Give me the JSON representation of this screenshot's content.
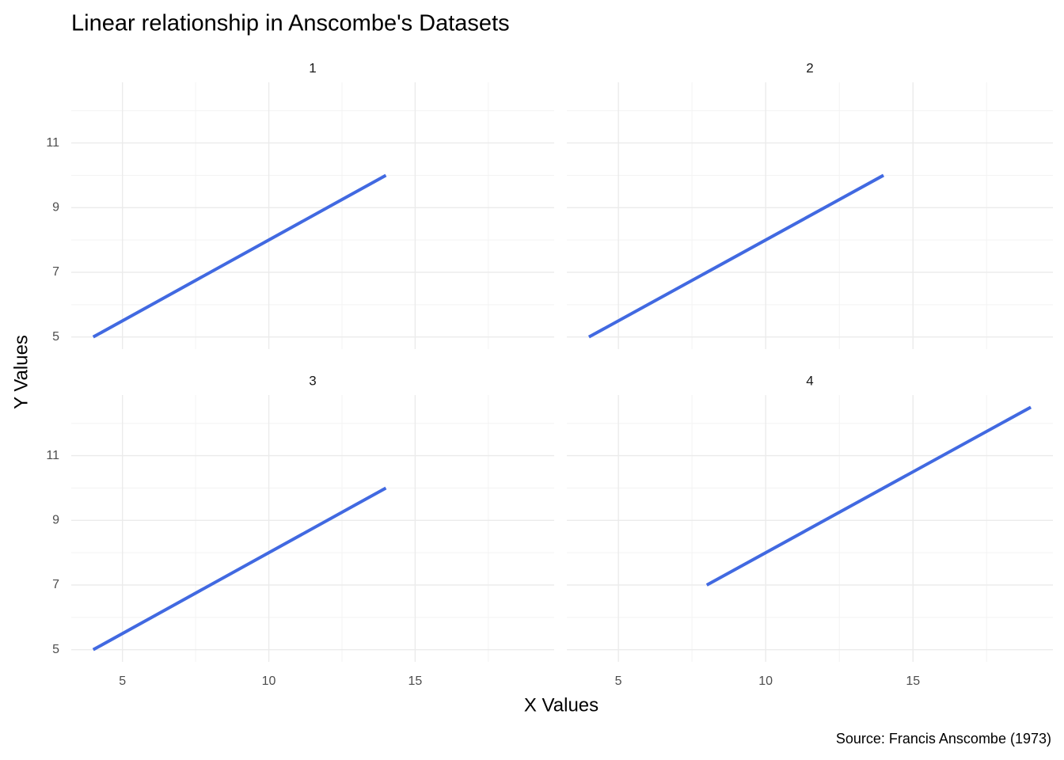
{
  "title": "Linear relationship in Anscombe's Datasets",
  "x_label": "X Values",
  "y_label": "Y Values",
  "caption": "Source: Francis Anscombe (1973)",
  "chart_data": [
    {
      "type": "line",
      "title": "1",
      "x": [
        4,
        14
      ],
      "values": [
        5,
        10
      ],
      "color": "#4169e1",
      "xlim": [
        3.25,
        19.75
      ],
      "ylim": [
        4.625,
        12.875
      ],
      "xticks": [
        5,
        10,
        15
      ],
      "yticks": [
        5,
        7,
        9,
        11
      ],
      "x_minor_ticks": [
        7.5,
        12.5,
        17.5
      ],
      "y_minor_ticks": [
        6,
        8,
        10,
        12
      ],
      "grid": true,
      "show_x_tick_labels": false,
      "show_y_tick_labels": true
    },
    {
      "type": "line",
      "title": "2",
      "x": [
        4,
        14
      ],
      "values": [
        5,
        10
      ],
      "color": "#4169e1",
      "xlim": [
        3.25,
        19.75
      ],
      "ylim": [
        4.625,
        12.875
      ],
      "xticks": [
        5,
        10,
        15
      ],
      "yticks": [
        5,
        7,
        9,
        11
      ],
      "x_minor_ticks": [
        7.5,
        12.5,
        17.5
      ],
      "y_minor_ticks": [
        6,
        8,
        10,
        12
      ],
      "grid": true,
      "show_x_tick_labels": false,
      "show_y_tick_labels": false
    },
    {
      "type": "line",
      "title": "3",
      "x": [
        4,
        14
      ],
      "values": [
        5,
        10
      ],
      "color": "#4169e1",
      "xlim": [
        3.25,
        19.75
      ],
      "ylim": [
        4.625,
        12.875
      ],
      "xticks": [
        5,
        10,
        15
      ],
      "yticks": [
        5,
        7,
        9,
        11
      ],
      "x_minor_ticks": [
        7.5,
        12.5,
        17.5
      ],
      "y_minor_ticks": [
        6,
        8,
        10,
        12
      ],
      "grid": true,
      "show_x_tick_labels": true,
      "show_y_tick_labels": true
    },
    {
      "type": "line",
      "title": "4",
      "x": [
        8,
        19
      ],
      "values": [
        7,
        12.5
      ],
      "color": "#4169e1",
      "xlim": [
        3.25,
        19.75
      ],
      "ylim": [
        4.625,
        12.875
      ],
      "xticks": [
        5,
        10,
        15
      ],
      "yticks": [
        5,
        7,
        9,
        11
      ],
      "x_minor_ticks": [
        7.5,
        12.5,
        17.5
      ],
      "y_minor_ticks": [
        6,
        8,
        10,
        12
      ],
      "grid": true,
      "show_x_tick_labels": true,
      "show_y_tick_labels": false
    }
  ]
}
